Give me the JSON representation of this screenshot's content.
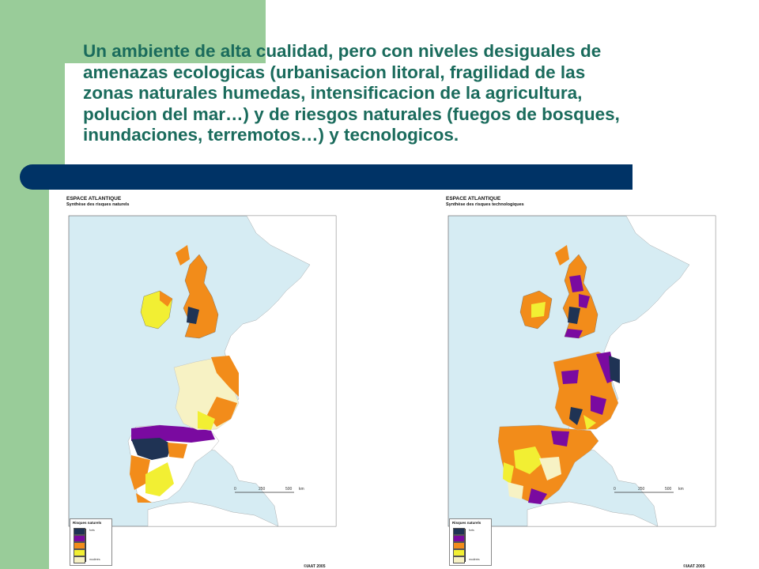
{
  "slide": {
    "title_lines": [
      "Un ambiente de alta cualidad, pero con niveles desiguales de",
      "amenazas ecologicas (urbanisacion litoral, fragilidad de las",
      "zonas naturales humedas, intensificacion de la agricultura,",
      "polucion del mar…) y de riesgos naturales (fuegos de bosques,",
      "inundaciones, terremotos…) y tecnologicos."
    ],
    "colors": {
      "green": "#99cc99",
      "bar": "#003366",
      "title": "#1a6b5c"
    }
  },
  "maps": [
    {
      "title": "ESPACE ATLANTIQUE",
      "subtitle": "Synthèse des risques naturels",
      "legend_title": "Risques naturels",
      "legend_high": "forts",
      "legend_low": "modérés",
      "scale": [
        "0",
        "250",
        "500",
        "km"
      ],
      "credit": "©IAAT 2005",
      "colors": {
        "sea": "#d6ecf3",
        "land": "#ffffff",
        "strong": "#1f3354",
        "purple": "#7a0aa0",
        "orange": "#f28c1a",
        "yellow": "#f2ef33",
        "pale": "#f7f2c4"
      }
    },
    {
      "title": "ESPACE ATLANTIQUE",
      "subtitle": "Synthèse des risques technologiques",
      "legend_title": "Risques naturels",
      "legend_high": "forts",
      "legend_low": "modérés",
      "scale": [
        "0",
        "250",
        "500",
        "km"
      ],
      "credit": "©IAAT 2005",
      "colors": {
        "sea": "#d6ecf3",
        "land": "#ffffff",
        "strong": "#1f3354",
        "purple": "#7a0aa0",
        "orange": "#f28c1a",
        "yellow": "#f2ef33",
        "pale": "#f7f2c4"
      }
    }
  ]
}
